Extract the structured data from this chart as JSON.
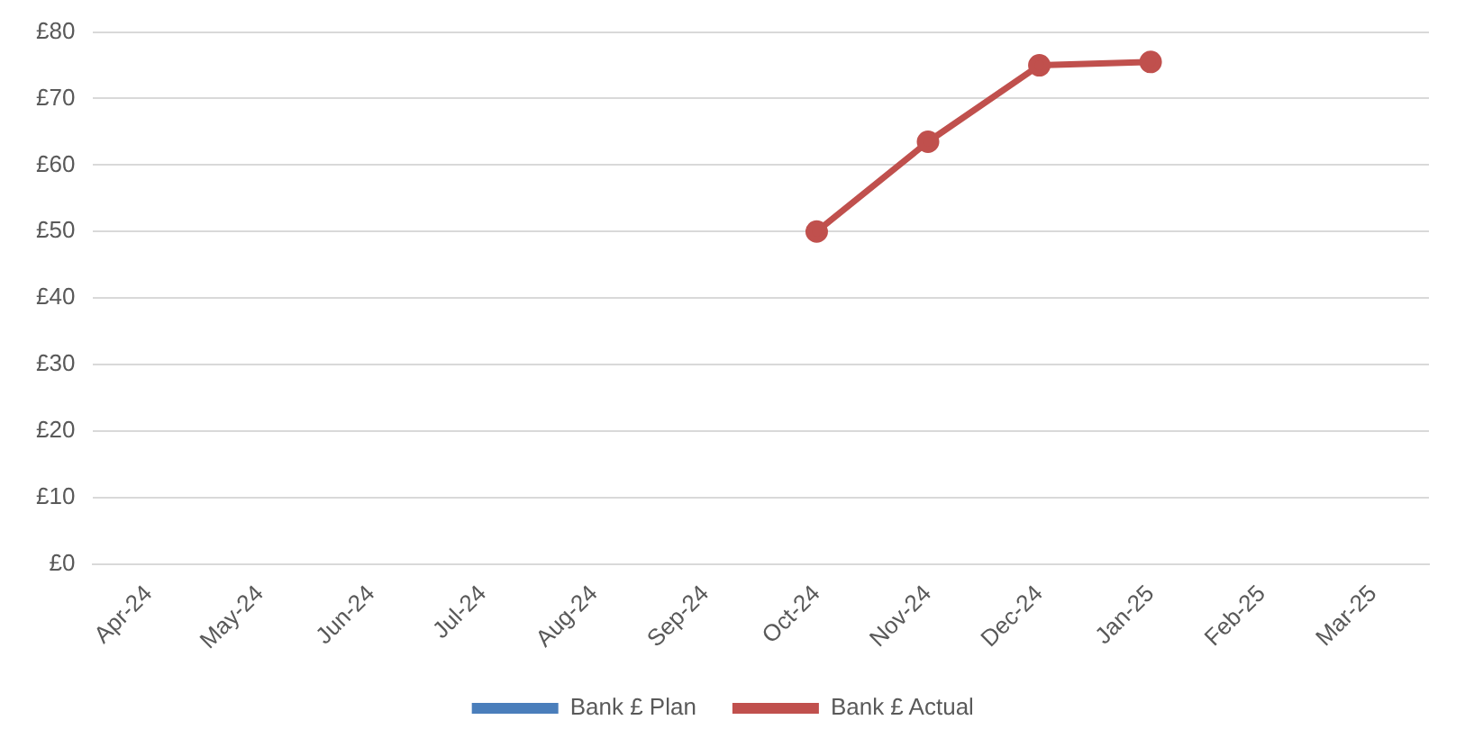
{
  "chart_data": {
    "type": "line",
    "categories": [
      "Apr-24",
      "May-24",
      "Jun-24",
      "Jul-24",
      "Aug-24",
      "Sep-24",
      "Oct-24",
      "Nov-24",
      "Dec-24",
      "Jan-25",
      "Feb-25",
      "Mar-25"
    ],
    "series": [
      {
        "name": "Bank £ Plan",
        "type": "bar",
        "color": "#4a7ebb",
        "values": [
          null,
          null,
          null,
          null,
          null,
          null,
          null,
          null,
          null,
          null,
          null,
          null
        ]
      },
      {
        "name": "Bank £ Actual",
        "color": "#c0504d",
        "values": [
          null,
          null,
          null,
          null,
          null,
          null,
          50,
          63.5,
          75,
          75.5,
          null,
          null
        ]
      }
    ],
    "ylim": [
      0,
      80
    ],
    "yticks": [
      {
        "value": 0,
        "label": "£0"
      },
      {
        "value": 10,
        "label": "£10"
      },
      {
        "value": 20,
        "label": "£20"
      },
      {
        "value": 30,
        "label": "£30"
      },
      {
        "value": 40,
        "label": "£40"
      },
      {
        "value": 50,
        "label": "£50"
      },
      {
        "value": 60,
        "label": "£60"
      },
      {
        "value": 70,
        "label": "£70"
      },
      {
        "value": 80,
        "label": "£80"
      }
    ],
    "grid": "y",
    "legend": "bottom",
    "marker": "circle",
    "line_style": "solid"
  }
}
